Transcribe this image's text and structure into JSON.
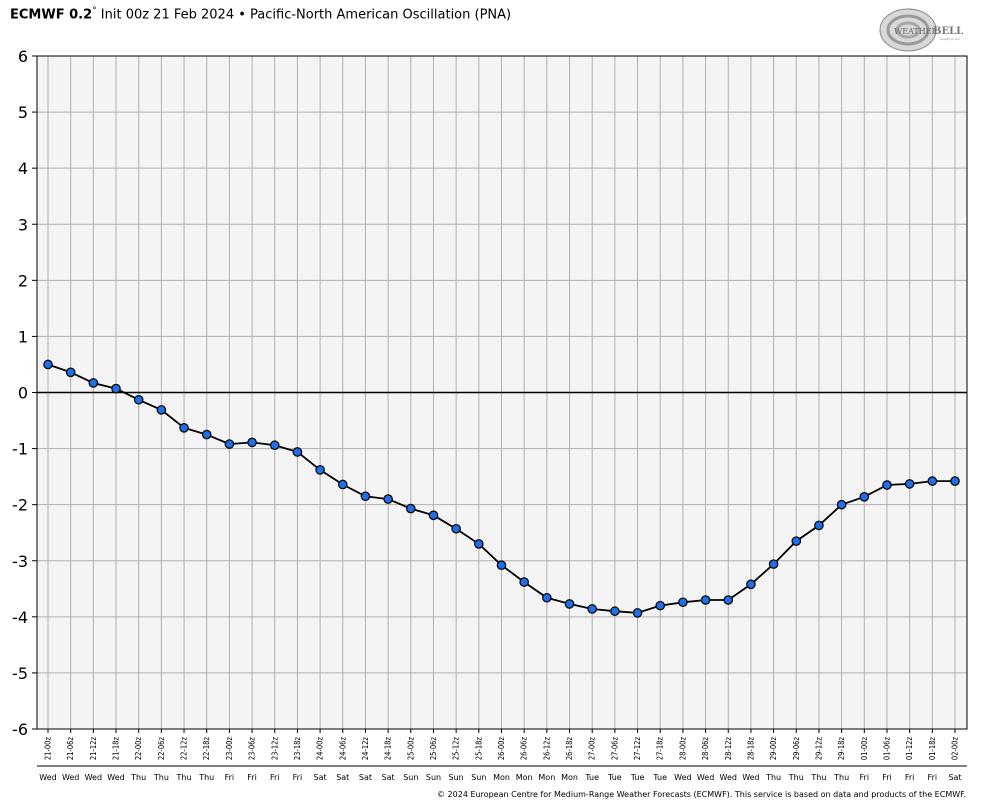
{
  "header": {
    "model": "ECMWF 0.2",
    "degree": "°",
    "rest": " Init 00z 21 Feb 2024 • Pacific-North American Oscillation (PNA)"
  },
  "logo": {
    "text_main": "WEATHER",
    "text_bell": "BELL",
    "text_sub": "Analytics LLC"
  },
  "footer": {
    "copyright": "© 2024 European Centre for Medium-Range Weather Forecasts (ECMWF). This service is based on data and products of the ECMWF."
  },
  "chart_data": {
    "type": "line",
    "title": "Pacific-North American Oscillation (PNA)",
    "xlabel": "",
    "ylabel": "",
    "ylim": [
      -6,
      6
    ],
    "yticks": [
      6,
      5,
      4,
      3,
      2,
      1,
      0,
      -1,
      -2,
      -3,
      -4,
      -5,
      -6
    ],
    "grid": true,
    "legend": "none",
    "colors": {
      "line": "#000000",
      "marker": "#1f6fe6",
      "grid": "#b0b0b0",
      "plot_bg": "#f4f4f4",
      "zero_line": "#000000"
    },
    "categories": [
      "21-00z",
      "21-06z",
      "21-12z",
      "21-18z",
      "22-00z",
      "22-06z",
      "22-12z",
      "22-18z",
      "23-00z",
      "23-06z",
      "23-12z",
      "23-18z",
      "24-00z",
      "24-06z",
      "24-12z",
      "24-18z",
      "25-00z",
      "25-06z",
      "25-12z",
      "25-18z",
      "26-00z",
      "26-06z",
      "26-12z",
      "26-18z",
      "27-00z",
      "27-06z",
      "27-12z",
      "27-18z",
      "28-00z",
      "28-06z",
      "28-12z",
      "28-18z",
      "29-00z",
      "29-06z",
      "29-12z",
      "29-18z",
      "01-00z",
      "01-06z",
      "01-12z",
      "01-18z",
      "02-00z"
    ],
    "days": [
      "Wed",
      "Wed",
      "Wed",
      "Wed",
      "Thu",
      "Thu",
      "Thu",
      "Thu",
      "Fri",
      "Fri",
      "Fri",
      "Fri",
      "Sat",
      "Sat",
      "Sat",
      "Sat",
      "Sun",
      "Sun",
      "Sun",
      "Sun",
      "Mon",
      "Mon",
      "Mon",
      "Mon",
      "Tue",
      "Tue",
      "Tue",
      "Tue",
      "Wed",
      "Wed",
      "Wed",
      "Wed",
      "Thu",
      "Thu",
      "Thu",
      "Thu",
      "Fri",
      "Fri",
      "Fri",
      "Fri",
      "Sat"
    ],
    "values": [
      0.5,
      0.36,
      0.17,
      0.07,
      -0.13,
      -0.31,
      -0.63,
      -0.75,
      -0.92,
      -0.89,
      -0.94,
      -1.06,
      -1.38,
      -1.64,
      -1.85,
      -1.9,
      -2.07,
      -2.19,
      -2.43,
      -2.7,
      -3.08,
      -3.38,
      -3.66,
      -3.77,
      -3.86,
      -3.9,
      -3.93,
      -3.8,
      -3.74,
      -3.7,
      -3.7,
      -3.42,
      -3.06,
      -2.65,
      -2.37,
      -2.0,
      -1.86,
      -1.65,
      -1.63,
      -1.58,
      -1.58
    ]
  }
}
